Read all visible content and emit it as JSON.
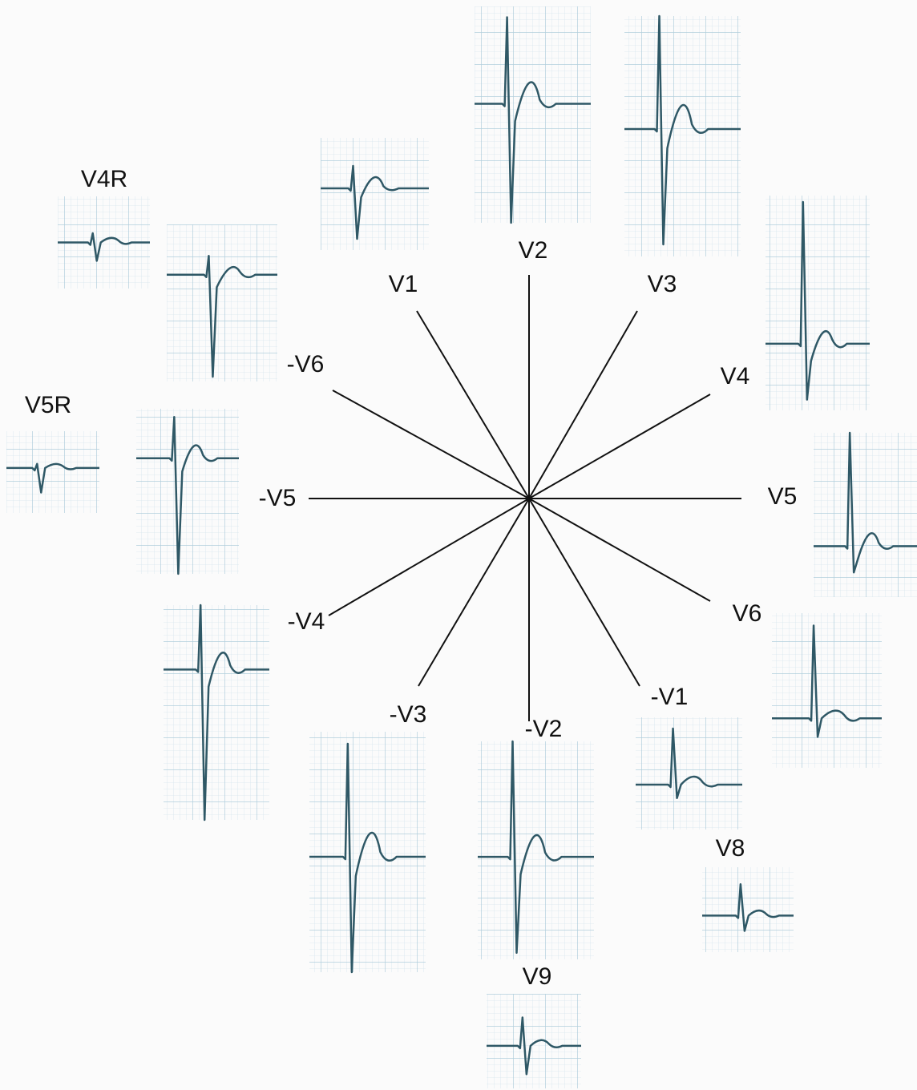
{
  "leads": [
    "V4R",
    "V5R",
    "V1",
    "V2",
    "V3",
    "V4",
    "V5",
    "V6",
    "-V6",
    "-V5",
    "-V4",
    "-V3",
    "-V2",
    "-V1",
    "V8",
    "V9"
  ]
}
